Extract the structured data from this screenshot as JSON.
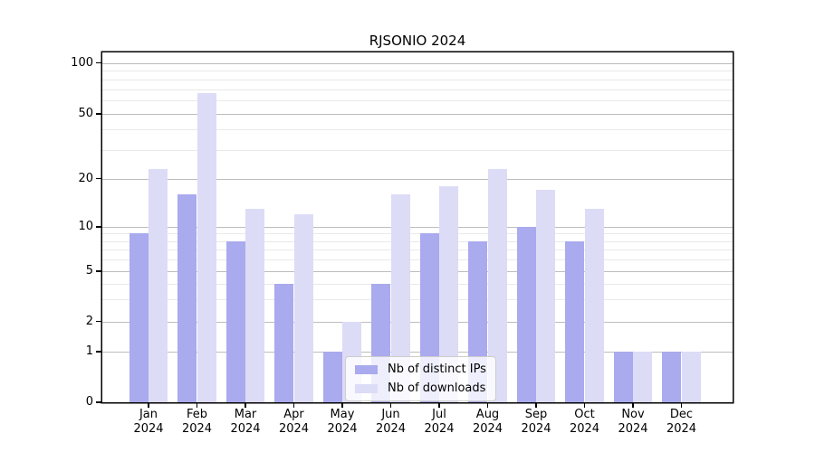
{
  "title": "RJSONIO 2024",
  "chart_data": {
    "type": "bar",
    "title": "RJSONIO 2024",
    "xlabel": "",
    "ylabel": "",
    "scale": "log above 1, linear 0-1",
    "grid": "horizontal major and minor, on",
    "legend_position": "lower center inside plot",
    "ylim": [
      0,
      110
    ],
    "y_major_ticks": [
      0,
      1,
      2,
      5,
      10,
      20,
      50,
      100
    ],
    "y_minor_ticks": [
      3,
      4,
      6,
      7,
      8,
      9,
      30,
      40,
      60,
      70,
      80,
      90
    ],
    "categories": [
      "Jan 2024",
      "Feb 2024",
      "Mar 2024",
      "Apr 2024",
      "May 2024",
      "Jun 2024",
      "Jul 2024",
      "Aug 2024",
      "Sep 2024",
      "Oct 2024",
      "Nov 2024",
      "Dec 2024"
    ],
    "series": [
      {
        "name": "Nb of distinct IPs",
        "color": "#aaaaee",
        "values": [
          9,
          16,
          8,
          4,
          1,
          4,
          9,
          8,
          10,
          8,
          1,
          1
        ]
      },
      {
        "name": "Nb of downloads",
        "color": "#dcdcf7",
        "values": [
          23,
          66,
          13,
          12,
          2,
          16,
          18,
          23,
          17,
          13,
          1,
          1
        ]
      }
    ]
  }
}
